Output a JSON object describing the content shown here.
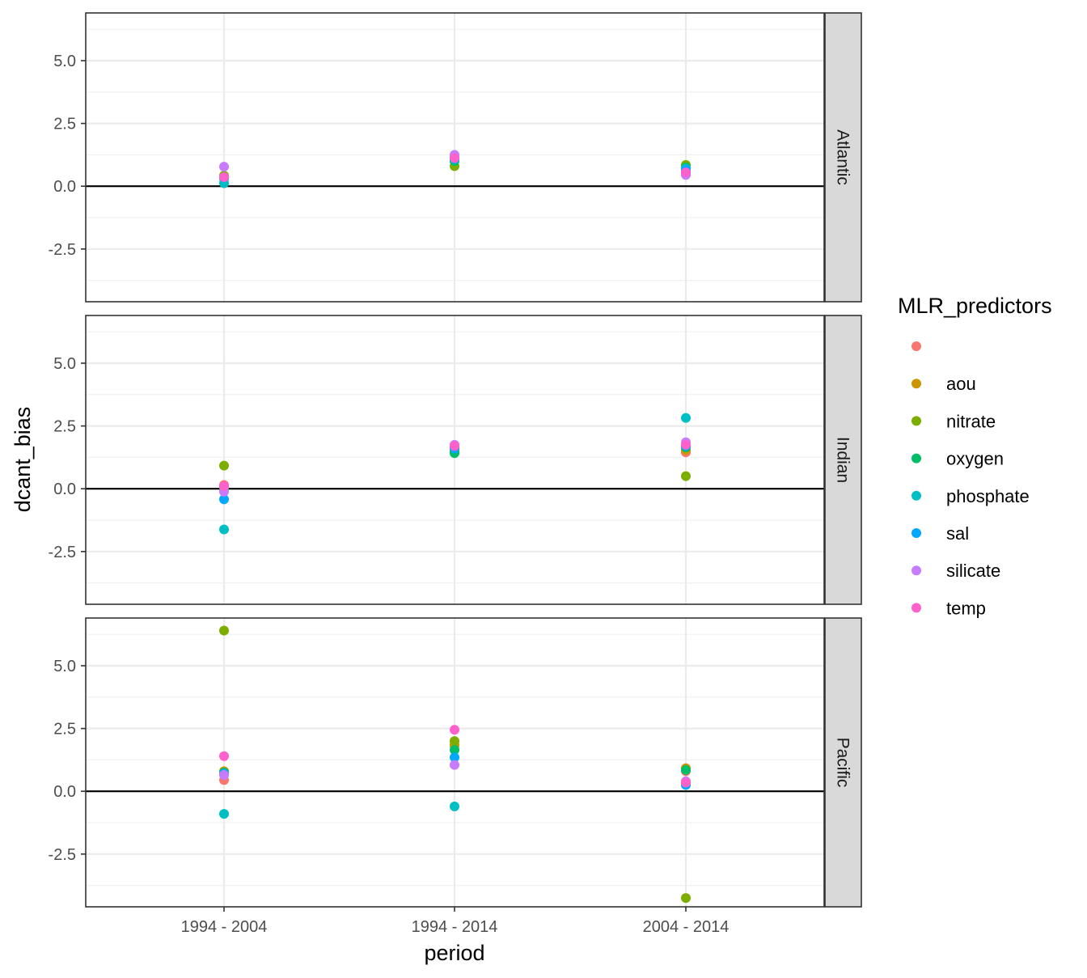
{
  "chart_data": {
    "type": "scatter",
    "facet_by": "basin",
    "facets": [
      "Atlantic",
      "Indian",
      "Pacific"
    ],
    "categories": [
      "1994 - 2004",
      "1994 - 2014",
      "2004 - 2014"
    ],
    "xlabel": "period",
    "ylabel": "dcant_bias",
    "ylim": [
      -4.6,
      6.9
    ],
    "y_ticks": [
      -2.5,
      0.0,
      2.5,
      5.0
    ],
    "y_tick_labels": [
      "-2.5",
      "0.0",
      "2.5",
      "5.0"
    ],
    "reference_line": 0,
    "grid": true,
    "legend": {
      "title": "MLR_predictors",
      "placement": "right",
      "entries": [
        {
          "label": "",
          "color": "#F8766D"
        },
        {
          "label": "aou",
          "color": "#CD9600"
        },
        {
          "label": "nitrate",
          "color": "#7CAE00"
        },
        {
          "label": "oxygen",
          "color": "#00BE67"
        },
        {
          "label": "phosphate",
          "color": "#00BFC4"
        },
        {
          "label": "sal",
          "color": "#00A9FF"
        },
        {
          "label": "silicate",
          "color": "#C77CFF"
        },
        {
          "label": "temp",
          "color": "#FF61CC"
        }
      ]
    },
    "points": {
      "Atlantic": [
        {
          "period": "1994 - 2004",
          "values": {
            "": 0.4,
            "aou": 0.38,
            "nitrate": 0.42,
            "oxygen": 0.3,
            "phosphate": 0.12,
            "sal": 0.35,
            "silicate": 0.78,
            "temp": 0.36
          }
        },
        {
          "period": "1994 - 2014",
          "values": {
            "": 1.1,
            "aou": 1.05,
            "nitrate": 0.8,
            "oxygen": 1.0,
            "phosphate": 1.15,
            "sal": 1.08,
            "silicate": 1.25,
            "temp": 1.12
          }
        },
        {
          "period": "2004 - 2014",
          "values": {
            "": 0.6,
            "aou": 0.72,
            "nitrate": 0.85,
            "oxygen": 0.75,
            "phosphate": 0.7,
            "sal": 0.65,
            "silicate": 0.45,
            "temp": 0.55
          }
        }
      ],
      "Indian": [
        {
          "period": "1994 - 2004",
          "values": {
            "": 0.15,
            "aou": 0.05,
            "nitrate": 0.92,
            "oxygen": -0.05,
            "phosphate": -1.62,
            "sal": -0.42,
            "silicate": -0.12,
            "temp": 0.1
          }
        },
        {
          "period": "1994 - 2014",
          "values": {
            "": 1.55,
            "aou": 1.5,
            "nitrate": 1.6,
            "oxygen": 1.42,
            "phosphate": 1.65,
            "sal": 1.6,
            "silicate": 1.75,
            "temp": 1.7
          }
        },
        {
          "period": "2004 - 2014",
          "values": {
            "": 1.45,
            "aou": 1.55,
            "nitrate": 0.5,
            "oxygen": 1.65,
            "phosphate": 2.82,
            "sal": 1.7,
            "silicate": 1.85,
            "temp": 1.75
          }
        }
      ],
      "Pacific": [
        {
          "period": "1994 - 2004",
          "values": {
            "": 0.45,
            "aou": 0.8,
            "nitrate": 6.4,
            "oxygen": 0.75,
            "phosphate": -0.9,
            "sal": 0.7,
            "silicate": 0.65,
            "temp": 1.4
          }
        },
        {
          "period": "1994 - 2014",
          "values": {
            "": 1.8,
            "aou": 1.85,
            "nitrate": 2.0,
            "oxygen": 1.65,
            "phosphate": -0.6,
            "sal": 1.35,
            "silicate": 1.05,
            "temp": 2.45
          }
        },
        {
          "period": "2004 - 2014",
          "values": {
            "": 0.8,
            "aou": 0.92,
            "nitrate": -4.25,
            "oxygen": 0.85,
            "phosphate": 0.3,
            "sal": 0.25,
            "silicate": 0.4,
            "temp": 0.35
          }
        }
      ]
    }
  }
}
